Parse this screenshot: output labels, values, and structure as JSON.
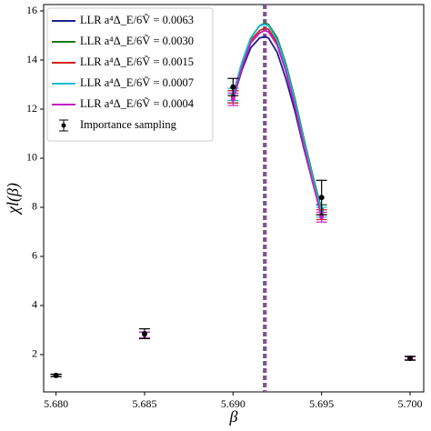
{
  "chart_data": {
    "type": "line",
    "xlabel": "β",
    "ylabel": "χl(β)",
    "xlim": [
      5.6793,
      5.70077
    ],
    "ylim": [
      0.48,
      16.26
    ],
    "xticks": [
      {
        "value": 5.68,
        "label": "5.680"
      },
      {
        "value": 5.685,
        "label": "5.685"
      },
      {
        "value": 5.69,
        "label": "5.690"
      },
      {
        "value": 5.695,
        "label": "5.695"
      },
      {
        "value": 5.7,
        "label": "5.700"
      }
    ],
    "yticks": [
      2,
      4,
      6,
      8,
      10,
      12,
      14,
      16
    ],
    "legend": "upper left",
    "curve_x": [
      5.69,
      5.6905,
      5.691,
      5.6915,
      5.6918,
      5.692,
      5.6925,
      5.693,
      5.6935,
      5.694,
      5.6945,
      5.695
    ],
    "point_x": [
      5.68,
      5.685,
      5.69,
      5.695,
      5.7
    ],
    "series": [
      {
        "name": "LLR a⁴Δ_E/6Ṽ = 0.0063",
        "color": "#1f1f8f",
        "peak_x": 5.6918,
        "values": [
          12.4,
          13.6,
          14.5,
          14.9,
          14.95,
          14.9,
          14.3,
          13.2,
          11.9,
          10.4,
          9.0,
          7.9
        ],
        "point_values": [
          1.15,
          2.8,
          12.5,
          7.9,
          1.85
        ],
        "point_errors": [
          0.05,
          0.12,
          0.25,
          0.2,
          0.06
        ]
      },
      {
        "name": "LLR a⁴Δ_E/6Ṽ = 0.0030",
        "color": "#1a7a1a",
        "peak_x": 5.6918,
        "values": [
          12.6,
          13.9,
          14.9,
          15.4,
          15.5,
          15.45,
          14.9,
          13.8,
          12.4,
          10.8,
          9.3,
          7.9
        ],
        "point_values": [
          1.15,
          2.8,
          12.6,
          7.9,
          1.85
        ],
        "point_errors": [
          0.05,
          0.12,
          0.25,
          0.2,
          0.06
        ]
      },
      {
        "name": "LLR a⁴Δ_E/6Ṽ = 0.0015",
        "color": "#d42020",
        "peak_x": 5.6918,
        "values": [
          12.5,
          13.8,
          14.8,
          15.2,
          15.3,
          15.25,
          14.7,
          13.6,
          12.2,
          10.6,
          9.1,
          7.7
        ],
        "point_values": [
          1.15,
          2.8,
          12.5,
          7.7,
          1.85
        ],
        "point_errors": [
          0.05,
          0.12,
          0.25,
          0.2,
          0.06
        ]
      },
      {
        "name": "LLR a⁴Δ_E/6Ṽ = 0.0007",
        "color": "#17becf",
        "peak_x": 5.6918,
        "values": [
          12.6,
          13.9,
          14.9,
          15.4,
          15.45,
          15.4,
          14.8,
          13.7,
          12.3,
          10.7,
          9.2,
          7.8
        ],
        "point_values": [
          1.15,
          2.8,
          12.6,
          7.8,
          1.85
        ],
        "point_errors": [
          0.05,
          0.12,
          0.25,
          0.2,
          0.06
        ]
      },
      {
        "name": "LLR a⁴Δ_E/6Ṽ = 0.0004",
        "color": "#c020c0",
        "peak_x": 5.6918,
        "values": [
          12.4,
          13.7,
          14.7,
          15.1,
          15.2,
          15.15,
          14.6,
          13.5,
          12.1,
          10.5,
          9.0,
          7.6
        ],
        "point_values": [
          1.15,
          2.8,
          12.4,
          7.6,
          1.85
        ],
        "point_errors": [
          0.05,
          0.12,
          0.25,
          0.2,
          0.06
        ]
      }
    ],
    "reference": {
      "name": "Importance sampling",
      "color": "#000000",
      "point_values": [
        1.15,
        2.85,
        12.9,
        8.4,
        1.85
      ],
      "point_errors": [
        0.05,
        0.2,
        0.35,
        0.7,
        0.08
      ]
    }
  }
}
